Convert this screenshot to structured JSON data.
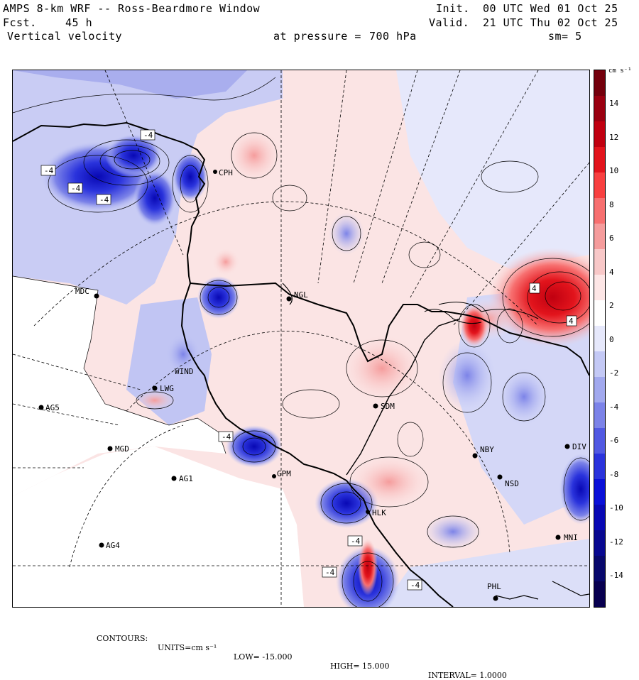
{
  "header": {
    "model_title": "AMPS 8-km WRF -- Ross-Beardmore Window",
    "forecast_label": "Fcst.",
    "forecast_hours": "45 h",
    "field_name": "Vertical velocity",
    "pressure_label": "at pressure =",
    "pressure_value": "700 hPa",
    "init_label": "Init.",
    "init_value": "00 UTC Wed 01 Oct 25",
    "valid_label": "Valid.",
    "valid_value": "21 UTC Thu 02 Oct 25",
    "smoothing": "sm= 5"
  },
  "colorbar": {
    "units_label": "cm s⁻¹",
    "ticks": [
      "14",
      "12",
      "10",
      "8",
      "6",
      "4",
      "2",
      "0",
      "-2",
      "-4",
      "-6",
      "-8",
      "-10",
      "-12",
      "-14"
    ],
    "colors": [
      "#74000c",
      "#9a0010",
      "#c00010",
      "#e2141c",
      "#f84040",
      "#f77070",
      "#f59c9c",
      "#f8c8c8",
      "#fde6e6",
      "#ffffff",
      "#e6e8fb",
      "#c4c9f5",
      "#a2a9ee",
      "#7c83e8",
      "#5159e2",
      "#2a33dc",
      "#0a10d8",
      "#0808b4",
      "#080890",
      "#08086c",
      "#080050"
    ]
  },
  "stations": [
    {
      "id": "MDC",
      "label": "MDC"
    },
    {
      "id": "NGL",
      "label": "NGL"
    },
    {
      "id": "LWG",
      "label": "LWG"
    },
    {
      "id": "AG5",
      "label": "AG5"
    },
    {
      "id": "MGD",
      "label": "MGD"
    },
    {
      "id": "AG1",
      "label": "AG1"
    },
    {
      "id": "SDM",
      "label": "SDM"
    },
    {
      "id": "NBY",
      "label": "NBY"
    },
    {
      "id": "NSD",
      "label": "NSD"
    },
    {
      "id": "AG4",
      "label": "AG4"
    },
    {
      "id": "MNI",
      "label": "MNI"
    },
    {
      "id": "PHL",
      "label": "PHL"
    },
    {
      "id": "WIND",
      "label": "WIND"
    },
    {
      "id": "CPH",
      "label": "CPH"
    },
    {
      "id": "GPM",
      "label": "GPM"
    },
    {
      "id": "HLK",
      "label": "HLK"
    },
    {
      "id": "DIV",
      "label": "DIV"
    }
  ],
  "contour_labels": [
    "-4",
    "-4",
    "-4",
    "-4",
    "-4",
    "-4",
    "-4",
    "-4",
    "4",
    "4"
  ],
  "footer": {
    "contours_label": "CONTOURS:",
    "units": "UNITS=cm s⁻¹",
    "low": "LOW= -15.000",
    "high": "HIGH= 15.000",
    "interval": "INTERVAL= 1.0000"
  }
}
